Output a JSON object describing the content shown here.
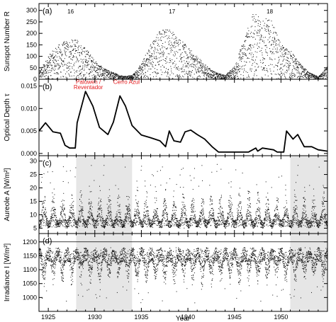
{
  "chart_data": {
    "type": "scatter",
    "xlabel": "Year",
    "xlim": [
      1924,
      1955
    ],
    "x_ticks": [
      "1925",
      "1930",
      "1935",
      "1940",
      "1945",
      "1950"
    ],
    "shaded_periods": [
      [
        1928,
        1934
      ],
      [
        1951,
        1955
      ]
    ],
    "panels": [
      {
        "id": "a",
        "label": "(a)",
        "ylabel": "Sunspot Number R",
        "ylim": [
          0,
          330
        ],
        "yticks": [
          0,
          50,
          100,
          150,
          200,
          250,
          300
        ],
        "style": "dots",
        "cycle_labels": [
          {
            "text": "16",
            "x": 1927.4
          },
          {
            "text": "17",
            "x": 1938.3
          },
          {
            "text": "18",
            "x": 1948.8
          }
        ],
        "envelope": [
          {
            "x": 1924.0,
            "y": 30
          },
          {
            "x": 1925.0,
            "y": 90
          },
          {
            "x": 1926.0,
            "y": 130
          },
          {
            "x": 1927.0,
            "y": 150
          },
          {
            "x": 1928.0,
            "y": 150
          },
          {
            "x": 1929.0,
            "y": 120
          },
          {
            "x": 1930.0,
            "y": 70
          },
          {
            "x": 1931.0,
            "y": 40
          },
          {
            "x": 1932.0,
            "y": 25
          },
          {
            "x": 1933.0,
            "y": 12
          },
          {
            "x": 1934.0,
            "y": 15
          },
          {
            "x": 1935.0,
            "y": 60
          },
          {
            "x": 1936.0,
            "y": 140
          },
          {
            "x": 1937.0,
            "y": 190
          },
          {
            "x": 1938.0,
            "y": 195
          },
          {
            "x": 1939.0,
            "y": 160
          },
          {
            "x": 1940.0,
            "y": 120
          },
          {
            "x": 1941.0,
            "y": 85
          },
          {
            "x": 1942.0,
            "y": 50
          },
          {
            "x": 1943.0,
            "y": 25
          },
          {
            "x": 1944.0,
            "y": 15
          },
          {
            "x": 1945.0,
            "y": 50
          },
          {
            "x": 1946.0,
            "y": 160
          },
          {
            "x": 1947.0,
            "y": 250
          },
          {
            "x": 1948.0,
            "y": 240
          },
          {
            "x": 1949.0,
            "y": 220
          },
          {
            "x": 1950.0,
            "y": 130
          },
          {
            "x": 1951.0,
            "y": 110
          },
          {
            "x": 1952.0,
            "y": 60
          },
          {
            "x": 1953.0,
            "y": 25
          },
          {
            "x": 1954.0,
            "y": 10
          },
          {
            "x": 1955.0,
            "y": 50
          }
        ]
      },
      {
        "id": "b",
        "label": "(b)",
        "ylabel": "Optical Depth τ",
        "ylim": [
          -0.0005,
          0.0165
        ],
        "yticks": [
          0.0,
          0.005,
          0.01,
          0.015
        ],
        "ytick_labels": [
          "0.000",
          "0.005",
          "0.010",
          "0.015"
        ],
        "style": "line",
        "annotations": [
          {
            "text": "Paluweh /",
            "x": 1929.3,
            "y": 0.0155
          },
          {
            "text": "Reventador",
            "x": 1929.3,
            "y": 0.0143
          },
          {
            "text": "Cerro Azul",
            "x": 1933.4,
            "y": 0.0155
          }
        ],
        "series": [
          {
            "x": 1924.0,
            "y": 0.005
          },
          {
            "x": 1924.7,
            "y": 0.0068
          },
          {
            "x": 1925.5,
            "y": 0.0048
          },
          {
            "x": 1926.3,
            "y": 0.0045
          },
          {
            "x": 1926.8,
            "y": 0.0018
          },
          {
            "x": 1927.3,
            "y": 0.0012
          },
          {
            "x": 1927.9,
            "y": 0.0012
          },
          {
            "x": 1928.1,
            "y": 0.0068
          },
          {
            "x": 1929.0,
            "y": 0.0138
          },
          {
            "x": 1929.8,
            "y": 0.0105
          },
          {
            "x": 1930.5,
            "y": 0.0058
          },
          {
            "x": 1931.4,
            "y": 0.0042
          },
          {
            "x": 1932.0,
            "y": 0.007
          },
          {
            "x": 1932.7,
            "y": 0.0128
          },
          {
            "x": 1933.3,
            "y": 0.0105
          },
          {
            "x": 1934.0,
            "y": 0.0062
          },
          {
            "x": 1935.0,
            "y": 0.0041
          },
          {
            "x": 1936.0,
            "y": 0.0035
          },
          {
            "x": 1937.0,
            "y": 0.0028
          },
          {
            "x": 1937.6,
            "y": 0.0015
          },
          {
            "x": 1938.0,
            "y": 0.005
          },
          {
            "x": 1938.5,
            "y": 0.0028
          },
          {
            "x": 1939.2,
            "y": 0.0025
          },
          {
            "x": 1939.7,
            "y": 0.0048
          },
          {
            "x": 1940.3,
            "y": 0.0052
          },
          {
            "x": 1941.0,
            "y": 0.0042
          },
          {
            "x": 1941.8,
            "y": 0.0032
          },
          {
            "x": 1942.6,
            "y": 0.0015
          },
          {
            "x": 1943.3,
            "y": 0.0003
          },
          {
            "x": 1945.0,
            "y": 0.0003
          },
          {
            "x": 1946.5,
            "y": 0.0003
          },
          {
            "x": 1947.3,
            "y": 0.0012
          },
          {
            "x": 1947.5,
            "y": 0.0005
          },
          {
            "x": 1948.0,
            "y": 0.0012
          },
          {
            "x": 1949.2,
            "y": 0.0008
          },
          {
            "x": 1949.6,
            "y": 0.0003
          },
          {
            "x": 1950.3,
            "y": 0.0003
          },
          {
            "x": 1950.6,
            "y": 0.005
          },
          {
            "x": 1951.3,
            "y": 0.0032
          },
          {
            "x": 1951.8,
            "y": 0.0042
          },
          {
            "x": 1952.5,
            "y": 0.0015
          },
          {
            "x": 1953.3,
            "y": 0.0015
          },
          {
            "x": 1954.0,
            "y": 0.0008
          },
          {
            "x": 1955.0,
            "y": 0.0005
          }
        ]
      },
      {
        "id": "c",
        "label": "(c)",
        "ylabel": "Aureole A [W/m²]",
        "ylim": [
          3,
          32
        ],
        "yticks": [
          5,
          10,
          15,
          20,
          25,
          30
        ],
        "style": "dots",
        "baseline": {
          "lo": 5,
          "hi": 8
        },
        "seasonal_peak": {
          "lo": 12,
          "hi": 22
        }
      },
      {
        "id": "d",
        "label": "(d)",
        "ylabel": "Irradiance I [W/m²]",
        "ylim": [
          950,
          1230
        ],
        "yticks": [
          1000,
          1050,
          1100,
          1150,
          1200
        ],
        "style": "dots",
        "reference_line": 1200,
        "band": {
          "lo": 1130,
          "hi": 1180
        },
        "seasonal_dip": {
          "lo": 1030,
          "hi": 1080
        }
      }
    ]
  }
}
